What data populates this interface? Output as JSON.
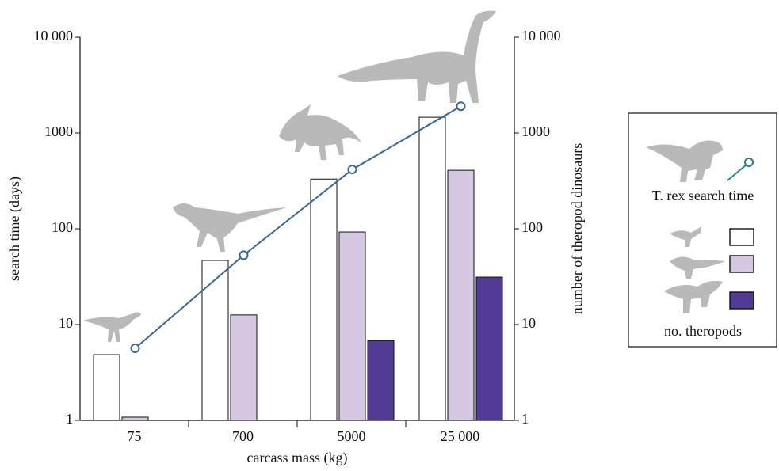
{
  "chart_data": {
    "type": "bar",
    "xlabel": "carcass mass (kg)",
    "ylabel": "search time (days)",
    "y2label": "number of theropod dinosaurs",
    "categories": [
      "75",
      "700",
      "5000",
      "25 000"
    ],
    "yscale": "log",
    "ylim": [
      1,
      10000
    ],
    "yticks": [
      1,
      10,
      100,
      {
        "value": 1000,
        "label": "1000"
      },
      {
        "value": 10000,
        "label": "10 000"
      }
    ],
    "y2scale": "log",
    "y2lim": [
      1,
      10000
    ],
    "y2ticks": [
      1,
      10,
      100,
      {
        "value": 1000,
        "label": "1000"
      },
      {
        "value": 10000,
        "label": "10 000"
      }
    ],
    "series": [
      {
        "type": "bar",
        "axis": "y2",
        "color": "#ffffff",
        "values": [
          4.85,
          46.7,
          330,
          1460
        ]
      },
      {
        "type": "bar",
        "axis": "y2",
        "color": "#d6c8e3",
        "values": [
          1.08,
          12.6,
          92.6,
          408
        ]
      },
      {
        "type": "bar",
        "axis": "y2",
        "color": "#523b97",
        "values": [
          null,
          null,
          6.8,
          31.3
        ]
      },
      {
        "type": "line",
        "name": "T. rex search time",
        "color": "#3a6597",
        "values": [
          5.65,
          53,
          416,
          1900
        ]
      }
    ],
    "legend_group_label": "no. theropods"
  }
}
